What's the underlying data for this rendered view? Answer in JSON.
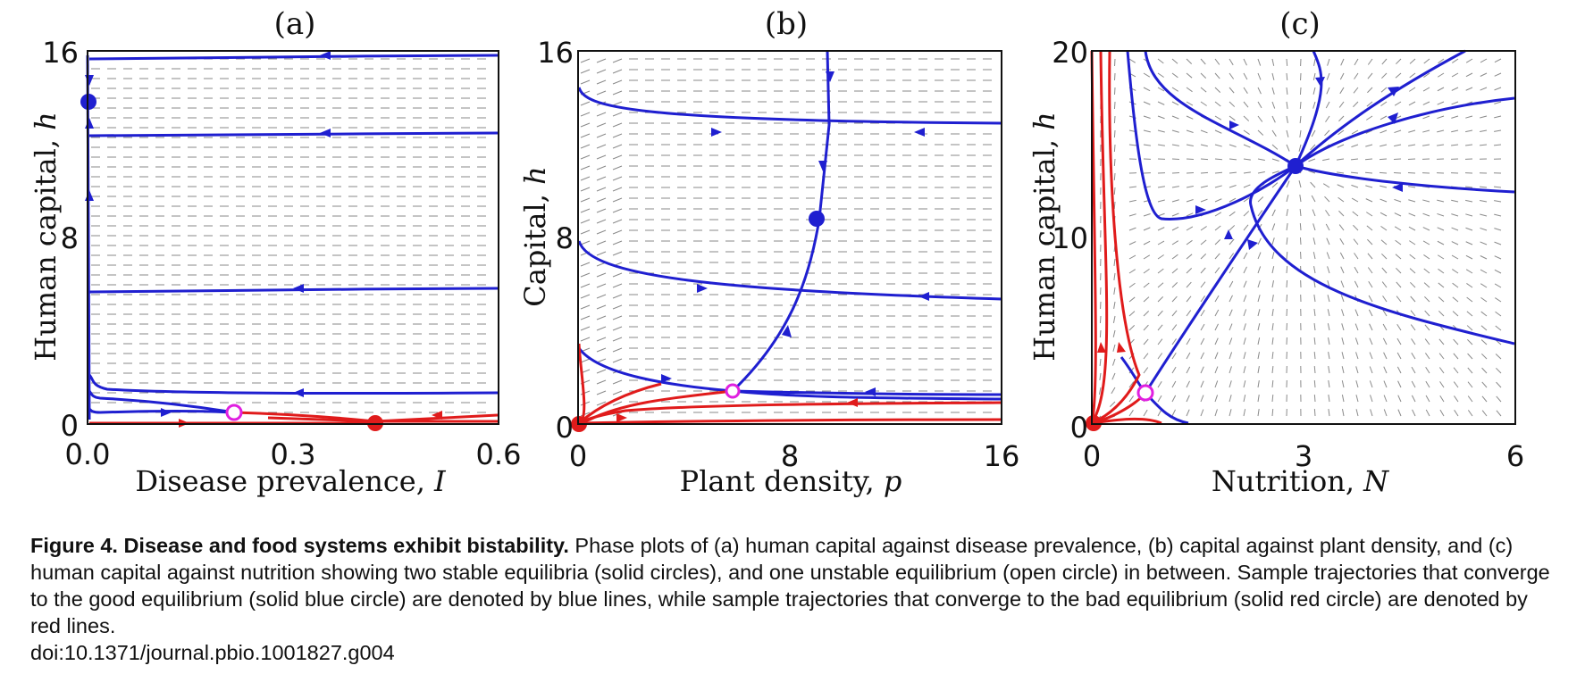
{
  "figure": {
    "panels": [
      {
        "title": "(a)",
        "xlabel": "Disease prevalence, ",
        "xvar": "I",
        "ylabel": "Human capital, ",
        "yvar": "h",
        "xticks": [
          "0.0",
          "0.3",
          "0.6"
        ],
        "yticks": [
          "16",
          "8",
          "0"
        ]
      },
      {
        "title": "(b)",
        "xlabel": "Plant density, ",
        "xvar": "p",
        "ylabel": "Capital, ",
        "yvar": "h",
        "xticks": [
          "0",
          "8",
          "16"
        ],
        "yticks": [
          "16",
          "8",
          "0"
        ]
      },
      {
        "title": "(c)",
        "xlabel": "Nutrition, ",
        "xvar": "N",
        "ylabel": "Human capital, ",
        "yvar": "h",
        "xticks": [
          "0",
          "3",
          "6"
        ],
        "yticks": [
          "20",
          "10",
          "0"
        ]
      }
    ],
    "colors": {
      "good": "#1f1fd0",
      "bad": "#e01b1b",
      "unstable": "#e020e0",
      "field": "#8a8a8a"
    },
    "equilibria": [
      {
        "panel": "a",
        "good": [
          0.0,
          13.7
        ],
        "unstable": [
          0.22,
          0.6
        ],
        "bad": [
          0.43,
          0.1
        ]
      },
      {
        "panel": "b",
        "good": [
          9.3,
          8.9
        ],
        "unstable": [
          6.0,
          1.6
        ],
        "bad": [
          0.0,
          0.1
        ]
      },
      {
        "panel": "c",
        "good": [
          2.8,
          13.8
        ],
        "unstable": [
          0.8,
          1.6
        ],
        "bad": [
          0.0,
          0.1
        ]
      }
    ]
  },
  "caption": {
    "bold": "Figure 4. Disease and food systems exhibit bistability.",
    "text": " Phase plots of (a) human capital against disease prevalence,  (b) capital against plant density, and  (c) human capital against nutrition showing two stable equilibria (solid circles), and one unstable equilibrium (open circle) in between. Sample trajectories that converge to the good equilibrium (solid blue circle) are denoted by blue lines, while sample trajectories that converge to the bad equilibrium (solid red circle) are denoted by red lines.",
    "doi": "doi:10.1371/journal.pbio.1001827.g004"
  }
}
